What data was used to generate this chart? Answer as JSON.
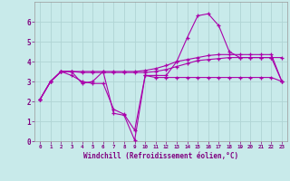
{
  "xlabel": "Windchill (Refroidissement éolien,°C)",
  "background_color": "#c8eaea",
  "grid_color": "#b0d4d4",
  "line_color": "#aa00aa",
  "x_values": [
    0,
    1,
    2,
    3,
    4,
    5,
    6,
    7,
    8,
    9,
    10,
    11,
    12,
    13,
    14,
    15,
    16,
    17,
    18,
    19,
    20,
    21,
    22,
    23
  ],
  "line1": [
    2.1,
    3.0,
    3.5,
    3.5,
    2.9,
    3.0,
    3.5,
    1.4,
    1.3,
    0.05,
    3.3,
    3.3,
    3.3,
    4.0,
    5.2,
    6.3,
    6.4,
    5.8,
    4.5,
    4.2,
    4.2,
    4.2,
    4.2,
    3.0
  ],
  "line2": [
    2.1,
    3.0,
    3.5,
    3.5,
    3.45,
    3.45,
    3.45,
    3.45,
    3.45,
    3.45,
    3.45,
    3.5,
    3.6,
    3.75,
    3.9,
    4.05,
    4.1,
    4.15,
    4.2,
    4.2,
    4.2,
    4.2,
    4.2,
    4.2
  ],
  "line3": [
    2.1,
    3.0,
    3.5,
    3.5,
    3.5,
    3.5,
    3.5,
    3.5,
    3.5,
    3.5,
    3.55,
    3.65,
    3.8,
    4.0,
    4.1,
    4.2,
    4.3,
    4.35,
    4.35,
    4.35,
    4.35,
    4.35,
    4.35,
    3.0
  ],
  "line4": [
    2.1,
    3.0,
    3.5,
    3.3,
    3.0,
    2.9,
    2.9,
    1.6,
    1.35,
    0.55,
    3.3,
    3.2,
    3.2,
    3.2,
    3.2,
    3.2,
    3.2,
    3.2,
    3.2,
    3.2,
    3.2,
    3.2,
    3.2,
    3.0
  ],
  "ylim": [
    0,
    7.0
  ],
  "xlim": [
    -0.5,
    23.5
  ],
  "yticks": [
    0,
    1,
    2,
    3,
    4,
    5,
    6
  ],
  "xticks": [
    0,
    1,
    2,
    3,
    4,
    5,
    6,
    7,
    8,
    9,
    10,
    11,
    12,
    13,
    14,
    15,
    16,
    17,
    18,
    19,
    20,
    21,
    22,
    23
  ]
}
